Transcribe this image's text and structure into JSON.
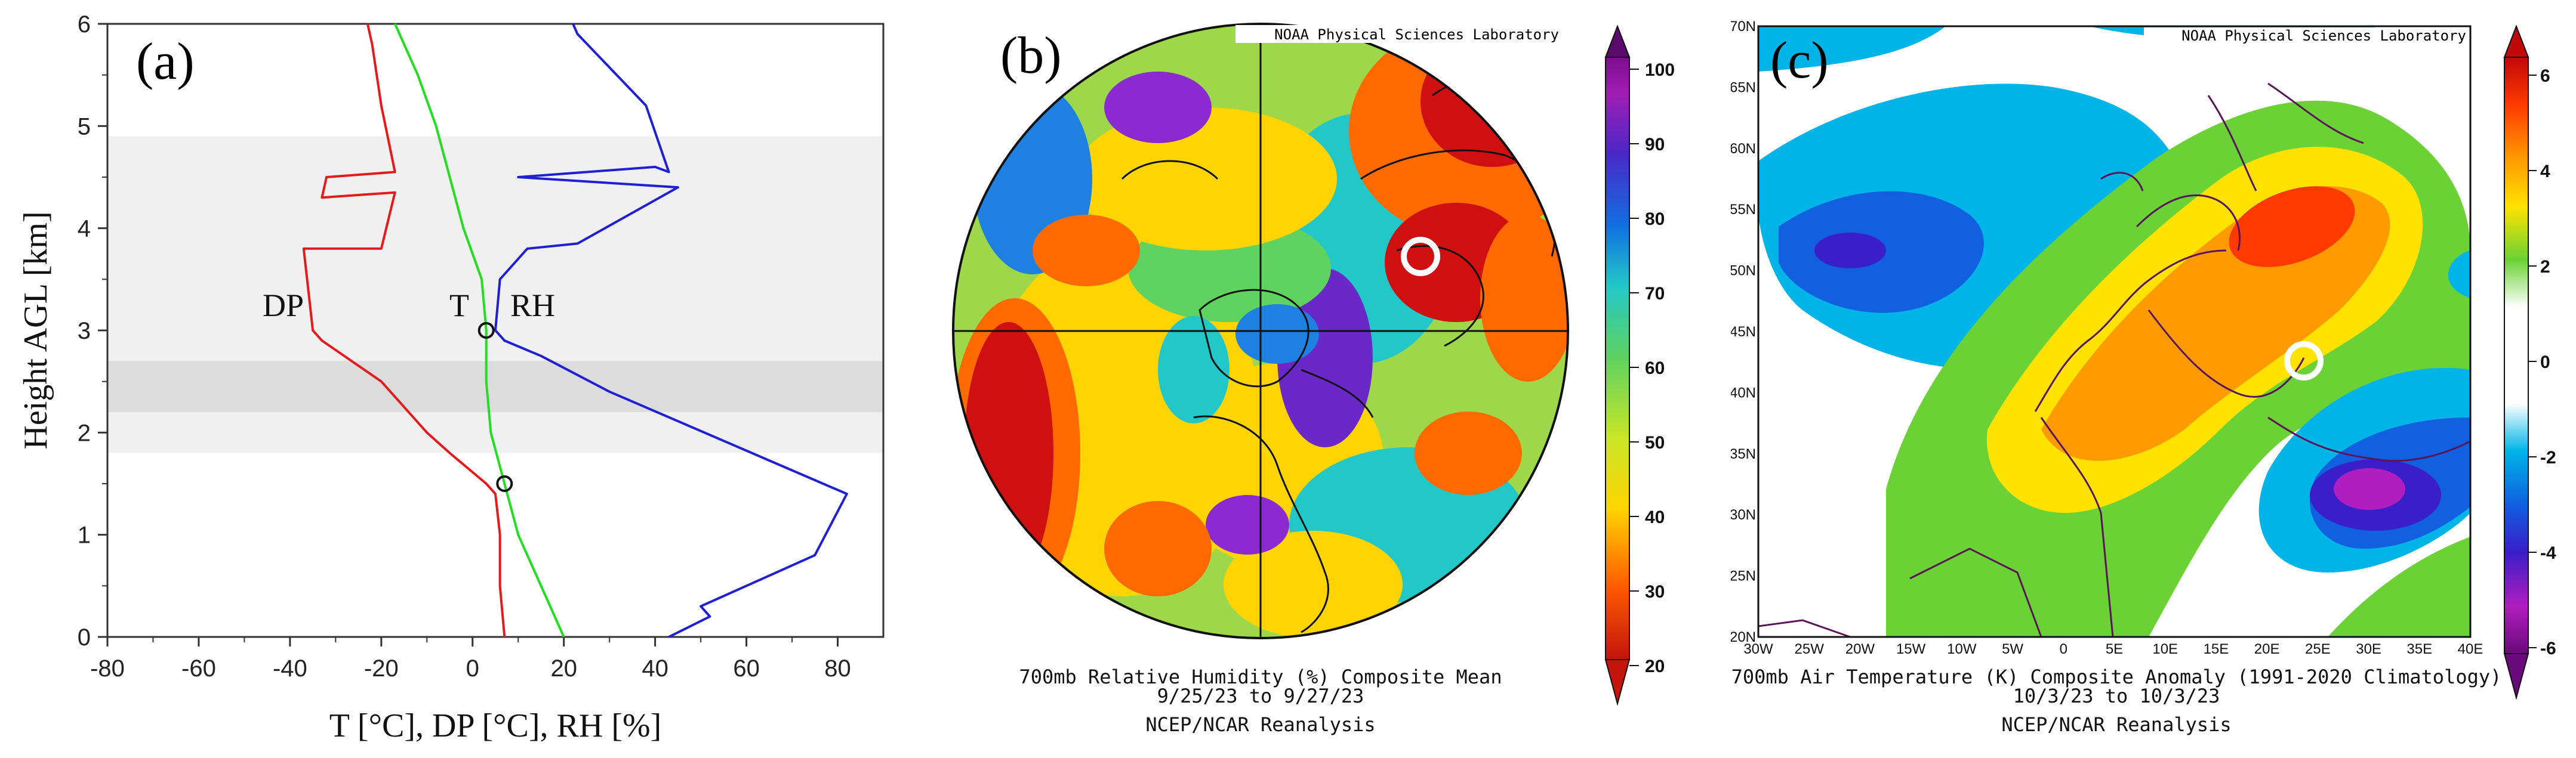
{
  "panel_a": {
    "label": "(a)",
    "xlabel": "T [°C], DP [°C], RH [%]",
    "ylabel": "Height AGL [km]",
    "curve_labels": {
      "dp": "DP",
      "t": "T",
      "rh": "RH"
    }
  },
  "panel_b": {
    "label": "(b)",
    "credit": "NOAA Physical Sciences Laboratory",
    "caption_line1": "700mb Relative Humidity (%) Composite Mean",
    "caption_line2": "9/25/23  to 9/27/23",
    "caption_line3": "NCEP/NCAR Reanalysis",
    "colorbar_ticks": [
      "100",
      "90",
      "80",
      "70",
      "60",
      "50",
      "40",
      "30",
      "20"
    ]
  },
  "panel_c": {
    "label": "(c)",
    "credit": "NOAA Physical Sciences Laboratory",
    "caption_line1": "700mb Air Temperature (K) Composite Anomaly (1991-2020 Climatology)",
    "caption_line2": "10/3/23  to 10/3/23",
    "caption_line3": "NCEP/NCAR Reanalysis",
    "colorbar_ticks": [
      "6",
      "4",
      "2",
      "0",
      "-2",
      "-4",
      "-6"
    ],
    "lon_ticks": [
      "30W",
      "25W",
      "20W",
      "15W",
      "10W",
      "5W",
      "0",
      "5E",
      "10E",
      "15E",
      "20E",
      "25E",
      "30E",
      "35E",
      "40E"
    ],
    "lat_ticks": [
      "70N",
      "65N",
      "60N",
      "55N",
      "50N",
      "45N",
      "40N",
      "35N",
      "30N",
      "25N",
      "20N"
    ]
  },
  "chart_data": [
    {
      "type": "line",
      "panel": "(a)",
      "xlabel": "T [°C], DP [°C], RH [%]",
      "ylabel": "Height AGL [km]",
      "xlim": [
        -80,
        90
      ],
      "ylim": [
        0,
        6
      ],
      "xticks": [
        -80,
        -60,
        -40,
        -20,
        0,
        20,
        40,
        60,
        80
      ],
      "yticks": [
        0,
        1,
        2,
        3,
        4,
        5,
        6
      ],
      "shaded_bands_km": [
        [
          1.8,
          4.9
        ],
        [
          2.2,
          2.7
        ]
      ],
      "markers": [
        {
          "x": 3,
          "y": 3.0
        },
        {
          "x": 7,
          "y": 1.5
        }
      ],
      "series": [
        {
          "name": "DP",
          "color": "#e41a1c",
          "points": [
            [
              7,
              0
            ],
            [
              6,
              0.5
            ],
            [
              6,
              1.0
            ],
            [
              5,
              1.4
            ],
            [
              3,
              1.5
            ],
            [
              -5,
              1.8
            ],
            [
              -10,
              2.0
            ],
            [
              -20,
              2.5
            ],
            [
              -33,
              2.9
            ],
            [
              -35,
              3.0
            ],
            [
              -37,
              3.8
            ],
            [
              -20,
              3.8
            ],
            [
              -17,
              4.35
            ],
            [
              -33,
              4.3
            ],
            [
              -32,
              4.5
            ],
            [
              -17,
              4.55
            ],
            [
              -20,
              5.2
            ],
            [
              -22,
              5.8
            ],
            [
              -23,
              6.0
            ]
          ]
        },
        {
          "name": "T",
          "color": "#22dd22",
          "points": [
            [
              20,
              0
            ],
            [
              15,
              0.5
            ],
            [
              10,
              1.0
            ],
            [
              7,
              1.5
            ],
            [
              4,
              2.0
            ],
            [
              3,
              2.5
            ],
            [
              3,
              3.0
            ],
            [
              2,
              3.5
            ],
            [
              -2,
              4.0
            ],
            [
              -5,
              4.5
            ],
            [
              -8,
              5.0
            ],
            [
              -12,
              5.5
            ],
            [
              -17,
              6.0
            ]
          ]
        },
        {
          "name": "RH",
          "color": "#1f1fd6",
          "points": [
            [
              43,
              0
            ],
            [
              52,
              0.2
            ],
            [
              50,
              0.3
            ],
            [
              75,
              0.8
            ],
            [
              82,
              1.4
            ],
            [
              30,
              2.4
            ],
            [
              15,
              2.75
            ],
            [
              7,
              2.9
            ],
            [
              5,
              3.0
            ],
            [
              6,
              3.5
            ],
            [
              12,
              3.8
            ],
            [
              23,
              3.85
            ],
            [
              45,
              4.4
            ],
            [
              10,
              4.5
            ],
            [
              40,
              4.6
            ],
            [
              43,
              4.55
            ],
            [
              38,
              5.2
            ],
            [
              23,
              5.9
            ],
            [
              22,
              6.0
            ]
          ]
        }
      ]
    },
    {
      "type": "heatmap",
      "panel": "(b)",
      "title": "700mb Relative Humidity (%) Composite Mean",
      "colorbar_range": [
        20,
        100
      ],
      "colorbar_ticks": [
        20,
        30,
        40,
        50,
        60,
        70,
        80,
        90,
        100
      ]
    },
    {
      "type": "heatmap",
      "panel": "(c)",
      "title": "700mb Air Temperature (K) Composite Anomaly (1991-2020 Climatology)",
      "colorbar_range": [
        -6,
        6
      ],
      "colorbar_ticks": [
        -6,
        -4,
        -2,
        0,
        2,
        4,
        6
      ],
      "lon_range": [
        -30,
        40
      ],
      "lat_range": [
        20,
        70
      ]
    }
  ],
  "colors": {
    "dp": "#e41a1c",
    "t": "#22dd22",
    "rh": "#1f1fd6"
  }
}
